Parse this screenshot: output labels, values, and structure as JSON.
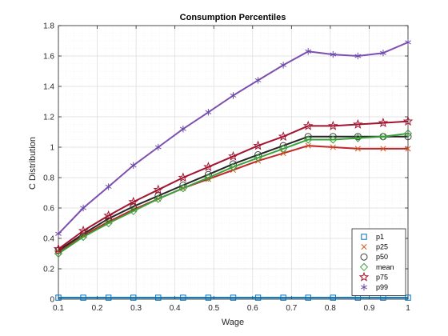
{
  "chart_data": {
    "type": "line",
    "title": "Consumption Percentiles",
    "xlabel": "Wage",
    "ylabel": "C Distribution",
    "xlim": [
      0.1,
      1.0
    ],
    "ylim": [
      0,
      1.8
    ],
    "x_ticks": [
      "0.1",
      "0.2",
      "0.3",
      "0.4",
      "0.5",
      "0.6",
      "0.7",
      "0.8",
      "0.9",
      "1"
    ],
    "y_ticks": [
      "0",
      "0.2",
      "0.4",
      "0.6",
      "0.8",
      "1",
      "1.2",
      "1.4",
      "1.6",
      "1.8"
    ],
    "grid": true,
    "minor_grid": true,
    "legend_position": "bottom-right",
    "x": [
      0.1,
      0.164,
      0.229,
      0.293,
      0.357,
      0.421,
      0.486,
      0.55,
      0.614,
      0.679,
      0.743,
      0.807,
      0.871,
      0.936,
      1.0
    ],
    "series": [
      {
        "name": "p1",
        "color": "#0072BD",
        "marker": "square",
        "values": [
          0.01,
          0.01,
          0.01,
          0.01,
          0.01,
          0.01,
          0.01,
          0.01,
          0.01,
          0.01,
          0.01,
          0.01,
          0.01,
          0.01,
          0.01
        ]
      },
      {
        "name": "p25",
        "color": "#D95319",
        "line_color": "#C0282A",
        "marker": "x",
        "values": [
          0.31,
          0.42,
          0.51,
          0.59,
          0.66,
          0.73,
          0.79,
          0.85,
          0.91,
          0.96,
          1.01,
          1.0,
          0.99,
          0.99,
          0.99
        ]
      },
      {
        "name": "p50",
        "color": "#404040",
        "line_color": "#262626",
        "marker": "circle",
        "values": [
          0.32,
          0.43,
          0.53,
          0.61,
          0.68,
          0.75,
          0.82,
          0.89,
          0.95,
          1.01,
          1.07,
          1.07,
          1.07,
          1.07,
          1.07
        ]
      },
      {
        "name": "mean",
        "color": "#3BA23B",
        "line_color": "#3BA23B",
        "marker": "diamond",
        "values": [
          0.3,
          0.41,
          0.5,
          0.58,
          0.66,
          0.73,
          0.8,
          0.87,
          0.93,
          0.99,
          1.05,
          1.05,
          1.06,
          1.07,
          1.09
        ]
      },
      {
        "name": "p75",
        "color": "#A2142F",
        "line_color": "#A2142F",
        "marker": "star",
        "values": [
          0.33,
          0.45,
          0.55,
          0.64,
          0.72,
          0.8,
          0.87,
          0.94,
          1.01,
          1.07,
          1.14,
          1.14,
          1.15,
          1.16,
          1.17
        ]
      },
      {
        "name": "p99",
        "color": "#6A4BA8",
        "line_color": "#7E4FB0",
        "marker": "asterisk",
        "values": [
          0.43,
          0.6,
          0.74,
          0.88,
          1.0,
          1.12,
          1.23,
          1.34,
          1.44,
          1.54,
          1.63,
          1.61,
          1.6,
          1.62,
          1.69
        ]
      }
    ]
  }
}
